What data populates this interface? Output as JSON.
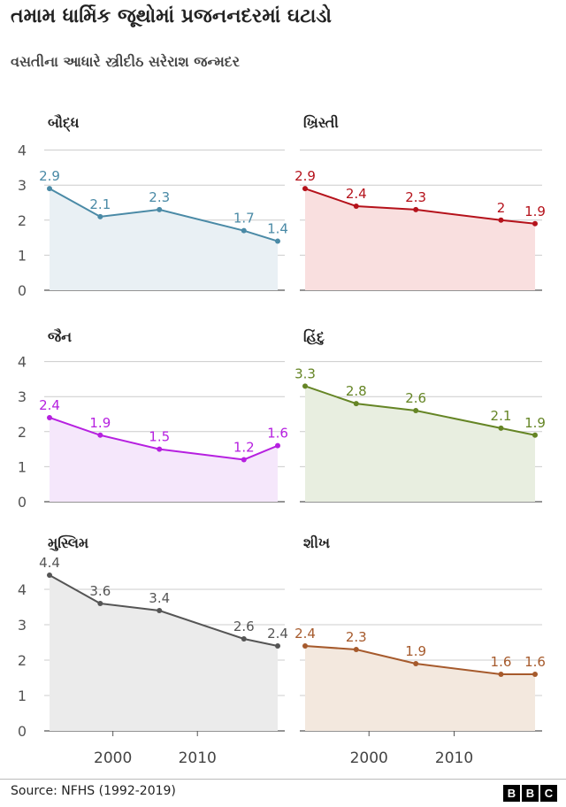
{
  "title": "તમામ ધાર્મિક જૂથોમાં પ્રજનનદરમાં ઘટાડો",
  "subtitle": "વસતીના આધારે સ્ત્રીદીઠ સરેરાશ જન્મદર",
  "source": "Source: NFHS (1992-2019)",
  "logo": [
    "B",
    "B",
    "C"
  ],
  "chart_data": [
    {
      "type": "area",
      "title": "બૌદ્ધ",
      "color": "#4a8aa6",
      "fill": "#e9f0f4",
      "x": [
        1992.5,
        1998.5,
        2005.5,
        2015.5,
        2019.5
      ],
      "y": [
        2.9,
        2.1,
        2.3,
        1.7,
        1.4
      ],
      "labels": [
        "2.9",
        "2.1",
        "2.3",
        "1.7",
        "1.4"
      ],
      "ylim": [
        0,
        4
      ],
      "y_ticks": [
        "0",
        "1",
        "2",
        "3",
        "4"
      ],
      "x_ticks": []
    },
    {
      "type": "area",
      "title": "ખ્રિસ્તી",
      "color": "#b5121b",
      "fill": "#f9dfdf",
      "x": [
        1992.5,
        1998.5,
        2005.5,
        2015.5,
        2019.5
      ],
      "y": [
        2.9,
        2.4,
        2.3,
        2.0,
        1.9
      ],
      "labels": [
        "2.9",
        "2.4",
        "2.3",
        "2",
        "1.9"
      ],
      "ylim": [
        0,
        4
      ],
      "y_ticks": [],
      "x_ticks": []
    },
    {
      "type": "area",
      "title": "જૈન",
      "color": "#b620e0",
      "fill": "#f5e7fb",
      "x": [
        1992.5,
        1998.5,
        2005.5,
        2015.5,
        2019.5
      ],
      "y": [
        2.4,
        1.9,
        1.5,
        1.2,
        1.6
      ],
      "labels": [
        "2.4",
        "1.9",
        "1.5",
        "1.2",
        "1.6"
      ],
      "ylim": [
        0,
        4
      ],
      "y_ticks": [
        "0",
        "1",
        "2",
        "3",
        "4"
      ],
      "x_ticks": []
    },
    {
      "type": "area",
      "title": "હિંદુ",
      "color": "#658525",
      "fill": "#e8eee0",
      "x": [
        1992.5,
        1998.5,
        2005.5,
        2015.5,
        2019.5
      ],
      "y": [
        3.3,
        2.8,
        2.6,
        2.1,
        1.9
      ],
      "labels": [
        "3.3",
        "2.8",
        "2.6",
        "2.1",
        "1.9"
      ],
      "ylim": [
        0,
        4
      ],
      "y_ticks": [],
      "x_ticks": []
    },
    {
      "type": "area",
      "title": "મુસ્લિમ",
      "color": "#555555",
      "fill": "#ebebeb",
      "x": [
        1992.5,
        1998.5,
        2005.5,
        2015.5,
        2019.5
      ],
      "y": [
        4.4,
        3.6,
        3.4,
        2.6,
        2.4
      ],
      "labels": [
        "4.4",
        "3.6",
        "3.4",
        "2.6",
        "2.4"
      ],
      "ylim": [
        0,
        4
      ],
      "y_ticks": [
        "0",
        "1",
        "2",
        "3",
        "4"
      ],
      "x_ticks": [
        "2000",
        "2010"
      ]
    },
    {
      "type": "area",
      "title": "શીખ",
      "color": "#a65a2c",
      "fill": "#f3e8de",
      "x": [
        1992.5,
        1998.5,
        2005.5,
        2015.5,
        2019.5
      ],
      "y": [
        2.4,
        2.3,
        1.9,
        1.6,
        1.6
      ],
      "labels": [
        "2.4",
        "2.3",
        "1.9",
        "1.6",
        "1.6"
      ],
      "ylim": [
        0,
        4
      ],
      "y_ticks": [],
      "x_ticks": [
        "2000",
        "2010"
      ]
    }
  ]
}
